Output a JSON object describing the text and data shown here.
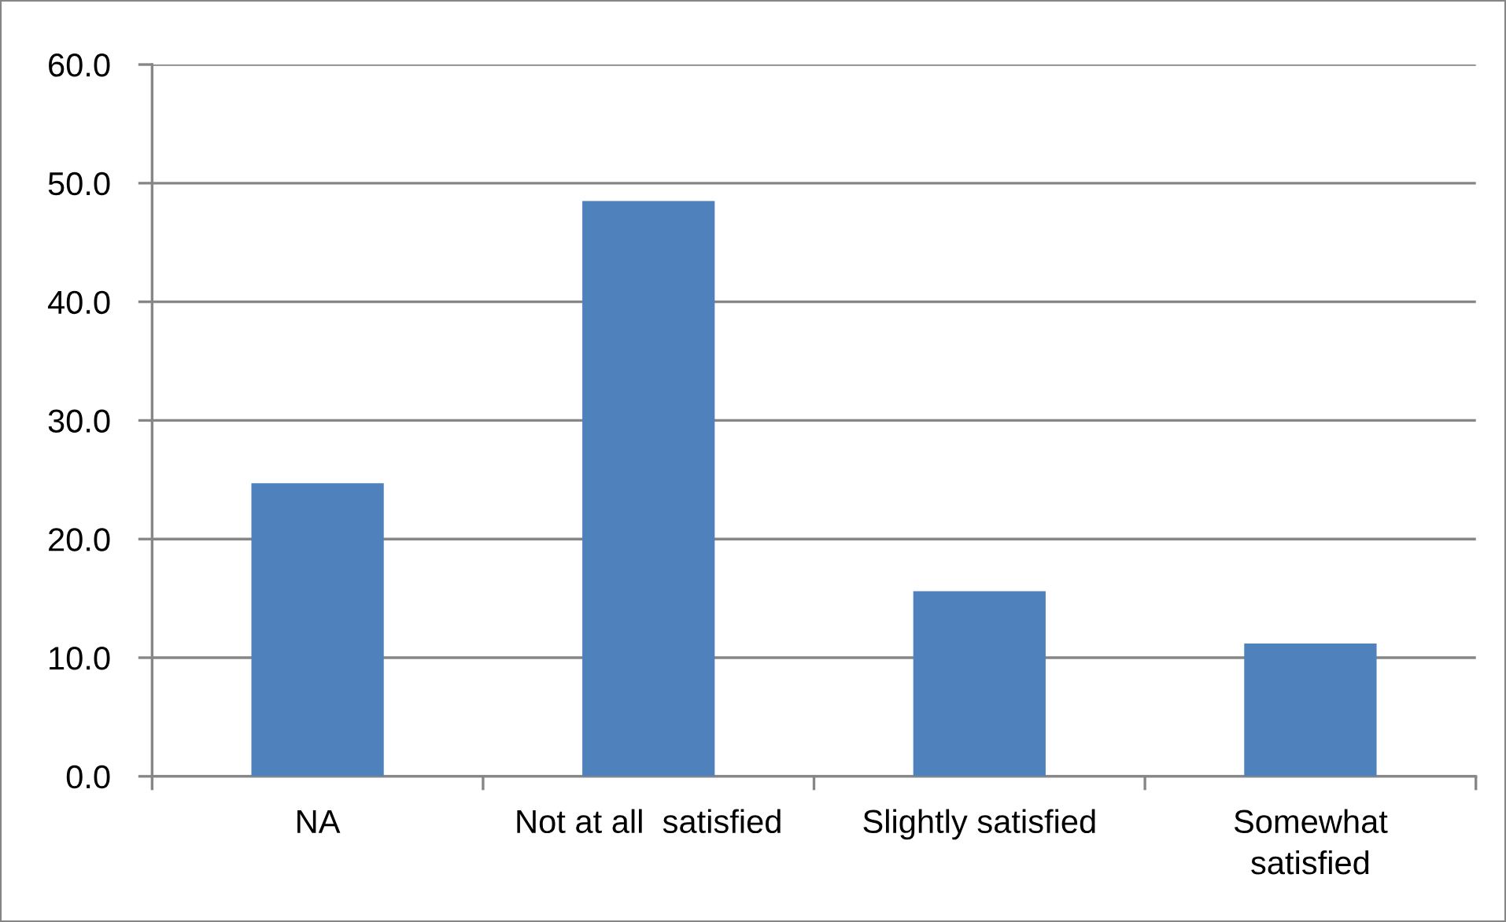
{
  "chart_data": {
    "type": "bar",
    "categories": [
      "NA",
      "Not at all  satisfied",
      "Slightly satisfied",
      "Somewhat\nsatisfied"
    ],
    "values": [
      24.7,
      48.5,
      15.6,
      11.2
    ],
    "color": "#4f81bd",
    "ylim": [
      0,
      60
    ],
    "yticks": [
      {
        "value": 0,
        "label": "0.0"
      },
      {
        "value": 10,
        "label": "10.0"
      },
      {
        "value": 20,
        "label": "20.0"
      },
      {
        "value": 30,
        "label": "30.0"
      },
      {
        "value": 40,
        "label": "40.0"
      },
      {
        "value": 50,
        "label": "50.0"
      },
      {
        "value": 60,
        "label": "60.0"
      }
    ],
    "grid": "y"
  }
}
